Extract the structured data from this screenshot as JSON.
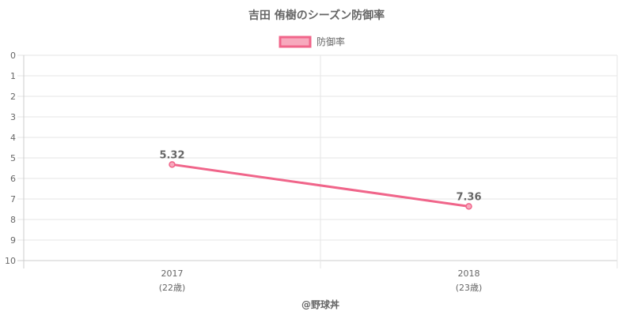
{
  "chart_data": {
    "type": "line",
    "title": "吉田 侑樹のシーズン防御率",
    "categories": [
      "2017",
      "2018"
    ],
    "category_sublabels": [
      "(22歳)",
      "(23歳)"
    ],
    "series": [
      {
        "name": "防御率",
        "values": [
          5.32,
          7.36
        ],
        "color": "#f0658a",
        "fill": "#f7a9bd"
      }
    ],
    "data_labels": [
      "5.32",
      "7.36"
    ],
    "y_ticks": [
      "0",
      "1",
      "2",
      "3",
      "4",
      "5",
      "6",
      "7",
      "8",
      "9",
      "10"
    ],
    "ylim": [
      0,
      10
    ],
    "y_reversed": true,
    "grid": true,
    "legend_position": "top-center",
    "xlabel": "",
    "ylabel": ""
  },
  "footer": {
    "credit": "@野球丼"
  }
}
